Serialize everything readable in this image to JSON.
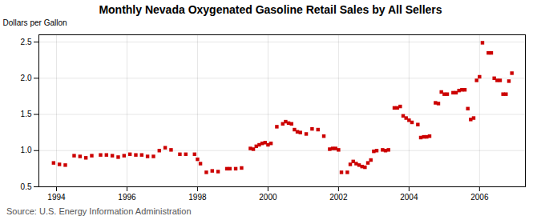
{
  "chart_data": {
    "type": "scatter",
    "title": "Monthly Nevada Oxygenated Gasoline Retail Sales by All Sellers",
    "ylabel": "Dollars per Gallon",
    "source": "Source: U.S. Energy Information Administration",
    "color": "#cc0000",
    "marker": "square",
    "grid": true,
    "xlim": [
      1993.5,
      2007.3
    ],
    "ylim": [
      0.5,
      2.6
    ],
    "xticks": [
      1994,
      1996,
      1998,
      2000,
      2002,
      2004,
      2006
    ],
    "yticks": [
      0.5,
      {
        "value": 1.0,
        "label": "1.0"
      },
      1.5,
      {
        "value": 2.0,
        "label": "2.0"
      },
      2.5
    ],
    "x": [
      1993.917,
      1994.083,
      1994.25,
      1994.5,
      1994.667,
      1994.833,
      1995.0,
      1995.25,
      1995.417,
      1995.583,
      1995.75,
      1995.917,
      1996.083,
      1996.25,
      1996.417,
      1996.583,
      1996.75,
      1996.917,
      1997.083,
      1997.25,
      1997.5,
      1997.667,
      1997.917,
      1998.0,
      1998.083,
      1998.25,
      1998.417,
      1998.583,
      1998.833,
      1998.917,
      1999.083,
      1999.25,
      1999.5,
      1999.583,
      1999.667,
      1999.75,
      1999.833,
      1999.917,
      2000.0,
      2000.083,
      2000.25,
      2000.417,
      2000.5,
      2000.583,
      2000.667,
      2000.75,
      2000.833,
      2000.917,
      2001.083,
      2001.25,
      2001.417,
      2001.583,
      2001.75,
      2001.833,
      2001.917,
      2002.0,
      2002.083,
      2002.25,
      2002.333,
      2002.417,
      2002.5,
      2002.583,
      2002.667,
      2002.75,
      2002.833,
      2002.917,
      2003.0,
      2003.083,
      2003.25,
      2003.333,
      2003.417,
      2003.583,
      2003.667,
      2003.75,
      2003.833,
      2003.917,
      2004.0,
      2004.083,
      2004.25,
      2004.333,
      2004.417,
      2004.5,
      2004.583,
      2004.75,
      2004.833,
      2004.917,
      2005.0,
      2005.083,
      2005.25,
      2005.333,
      2005.417,
      2005.5,
      2005.583,
      2005.667,
      2005.75,
      2005.833,
      2005.917,
      2006.0,
      2006.083,
      2006.25,
      2006.333,
      2006.417,
      2006.5,
      2006.583,
      2006.667,
      2006.75,
      2006.833,
      2006.917
    ],
    "values": [
      0.83,
      0.81,
      0.8,
      0.93,
      0.92,
      0.9,
      0.93,
      0.94,
      0.94,
      0.93,
      0.91,
      0.93,
      0.95,
      0.94,
      0.94,
      0.92,
      0.92,
      1.0,
      1.04,
      1.01,
      0.95,
      0.95,
      0.95,
      0.88,
      0.82,
      0.7,
      0.72,
      0.71,
      0.75,
      0.75,
      0.75,
      0.76,
      1.03,
      1.02,
      1.06,
      1.08,
      1.1,
      1.11,
      1.08,
      1.1,
      1.33,
      1.37,
      1.4,
      1.38,
      1.37,
      1.29,
      1.26,
      1.25,
      1.23,
      1.3,
      1.29,
      1.2,
      1.02,
      1.03,
      1.03,
      1.01,
      0.7,
      0.7,
      0.81,
      0.85,
      0.82,
      0.8,
      0.78,
      0.77,
      0.83,
      0.87,
      0.99,
      1.0,
      1.01,
      1.0,
      1.01,
      1.59,
      1.59,
      1.61,
      1.48,
      1.45,
      1.42,
      1.39,
      1.36,
      1.18,
      1.19,
      1.19,
      1.2,
      1.66,
      1.65,
      1.81,
      1.78,
      1.78,
      1.8,
      1.8,
      1.83,
      1.84,
      1.84,
      1.58,
      1.43,
      1.45,
      1.97,
      2.02,
      2.49,
      2.35,
      2.35,
      2.0,
      1.97,
      1.97,
      1.78,
      1.78,
      1.96,
      2.07
    ]
  }
}
